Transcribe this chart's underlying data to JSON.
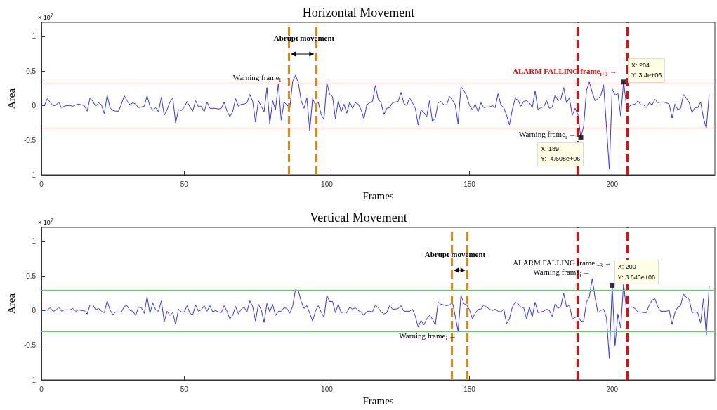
{
  "chart_data": [
    {
      "type": "line",
      "title": "Horizontal Movement",
      "xlabel": "Frames",
      "ylabel": "Area",
      "xlim": [
        0,
        236
      ],
      "xticks": [
        0,
        50,
        100,
        150,
        200
      ],
      "ylim": [
        -1,
        1.2
      ],
      "yticks": [
        -1,
        -0.5,
        0,
        0.5,
        1
      ],
      "grid": false,
      "x": [
        0,
        1,
        2,
        3,
        4,
        5,
        6,
        7,
        8,
        9,
        10,
        11,
        12,
        13,
        14,
        15,
        16,
        17,
        18,
        19,
        20,
        21,
        22,
        23,
        24,
        25,
        26,
        27,
        28,
        29,
        30,
        31,
        32,
        33,
        34,
        35,
        36,
        37,
        38,
        39,
        40,
        41,
        42,
        43,
        44,
        45,
        46,
        47,
        48,
        49,
        50,
        51,
        52,
        53,
        54,
        55,
        56,
        57,
        58,
        59,
        60,
        61,
        62,
        63,
        64,
        65,
        66,
        67,
        68,
        69,
        70,
        71,
        72,
        73,
        74,
        75,
        76,
        77,
        78,
        79,
        80,
        81,
        82,
        83,
        84,
        85,
        86,
        87,
        88,
        89,
        90,
        91,
        92,
        93,
        94,
        95,
        96,
        97,
        98,
        99,
        100,
        101,
        102,
        103,
        104,
        105,
        106,
        107,
        108,
        109,
        110,
        111,
        112,
        113,
        114,
        115,
        116,
        117,
        118,
        119,
        120,
        121,
        122,
        123,
        124,
        125,
        126,
        127,
        128,
        129,
        130,
        131,
        132,
        133,
        134,
        135,
        136,
        137,
        138,
        139,
        140,
        141,
        142,
        143,
        144,
        145,
        146,
        147,
        148,
        149,
        150,
        151,
        152,
        153,
        154,
        155,
        156,
        157,
        158,
        159,
        160,
        161,
        162,
        163,
        164,
        165,
        166,
        167,
        168,
        169,
        170,
        171,
        172,
        173,
        174,
        175,
        176,
        177,
        178,
        179,
        180,
        181,
        182,
        183,
        184,
        185,
        186,
        187,
        188,
        189,
        190,
        191,
        192,
        193,
        194,
        195,
        196,
        197,
        198,
        199,
        200,
        201,
        202,
        203,
        204,
        205,
        206,
        207,
        208,
        209,
        210,
        211,
        212,
        213,
        214,
        215,
        216,
        217,
        218,
        219,
        220,
        221,
        222,
        223,
        224,
        225,
        226,
        227,
        228,
        229,
        230,
        231,
        232,
        233,
        234
      ],
      "series": [
        {
          "color": "#3333ff",
          "marker": "none",
          "values": [
            0,
            0,
            0.1,
            0.05,
            0,
            0,
            0.05,
            -0.03,
            -0.01,
            0,
            0,
            -0.01,
            0.01,
            0.02,
            0.01,
            0,
            -0.08,
            0.11,
            0.06,
            -0.01,
            0.04,
            0.01,
            -0.12,
            0.15,
            -0.03,
            -0.07,
            -0.08,
            -0.08,
            0.02,
            0.14,
            0.07,
            0.01,
            0.04,
            0.02,
            -0.03,
            -0.02,
            -0.01,
            0.14,
            -0.01,
            -0.07,
            -0.03,
            -0.09,
            0.12,
            -0.14,
            -0.06,
            0.05,
            0.11,
            -0.25,
            -0.06,
            -0.07,
            -0.03,
            0.06,
            -0.02,
            -0.08,
            0.07,
            -0.02,
            -0.01,
            -0.09,
            0.05,
            -0.04,
            -0.04,
            -0.04,
            -0.05,
            -0.04,
            0.05,
            -0.08,
            -0.16,
            -0.09,
            0.1,
            -0.01,
            0.02,
            0.02,
            0.04,
            0.16,
            0.06,
            -0.24,
            0.07,
            -0.01,
            -0.09,
            0.26,
            -0.26,
            0.07,
            -0.06,
            0.32,
            -0.21,
            0.05,
            0.01,
            -0.04,
            0.34,
            0.44,
            0.33,
            0.07,
            -0.04,
            0.11,
            -0.36,
            0.1,
            0.01,
            0.05,
            -0.13,
            -0.2,
            0.33,
            0.16,
            0.13,
            -0.19,
            0.07,
            -0.09,
            0.02,
            -0.11,
            0.05,
            -0.04,
            0.04,
            0.02,
            -0.06,
            -0.19,
            0.01,
            0.04,
            0.06,
            0.29,
            0.09,
            0.04,
            -0.13,
            -0.04,
            -0.03,
            0.04,
            0.05,
            0.06,
            0.19,
            0.03,
            0,
            0.11,
            0.04,
            -0.04,
            -0.28,
            -0.06,
            -0.1,
            -0.16,
            0.07,
            -0.23,
            -0.18,
            0.04,
            0.06,
            0.01,
            0.01,
            0.13,
            0.08,
            0.01,
            -0.26,
            0.27,
            0.22,
            0.14,
            0,
            -0.06,
            0.02,
            -0.09,
            0.04,
            -0.03,
            -0.02,
            -0.02,
            0,
            -0.03,
            0.17,
            0.01,
            -0.03,
            -0.14,
            -0.28,
            -0.06,
            0.1,
            0.08,
            -0.01,
            0.06,
            0.07,
            0.04,
            -0.03,
            0.21,
            -0.06,
            -0.03,
            -0.02,
            0.07,
            -0.04,
            -0.02,
            0.15,
            0.07,
            0.09,
            0.26,
            0.04,
            0.11,
            -0.14,
            -0.04,
            -0.13,
            -0.4608,
            -0.3,
            0.22,
            0.34,
            0.19,
            0.07,
            0.1,
            0.14,
            0.3,
            -0.3,
            -0.92,
            0.24,
            0.15,
            0.18,
            -0.15,
            0.34,
            0.01,
            -0.01,
            0.01,
            0.02,
            0.07,
            0.01,
            0.01,
            -0.03,
            0.04,
            0.01,
            0.09,
            0.04,
            0.05,
            0.05,
            0.04,
            0.02,
            -0.18,
            0.02,
            -0.06,
            -0.04,
            0.16,
            0.11,
            0.04,
            -0.1,
            -0.03,
            -0.03,
            0.05,
            -0.18,
            -0.33,
            0.16
          ]
        },
        {
          "type": "scatter",
          "color": "#000000",
          "marker": "square",
          "x": [
            189,
            204
          ],
          "values": [
            -0.4608,
            0.34
          ]
        }
      ],
      "ref_lines": [
        {
          "axis": "x",
          "value": 86.6,
          "color": "#e8850c",
          "line_style": "dashed"
        },
        {
          "axis": "x",
          "value": 96.3,
          "color": "#e8850c",
          "line_style": "dashed"
        },
        {
          "axis": "x",
          "value": 187.8,
          "color": "#ff0000",
          "line_style": "dashed"
        },
        {
          "axis": "x",
          "value": 205.4,
          "color": "#ff0000",
          "line_style": "dashed"
        },
        {
          "axis": "y",
          "value": 0.32,
          "color": "#ff7070"
        },
        {
          "axis": "y",
          "value": -0.32,
          "color": "#ff7070"
        }
      ],
      "annotations": [
        "× 10$^{7}$",
        "Abrupt movement",
        {
          "text": "Warning frame$_{i}$ →",
          "x": 88,
          "y": 0.34
        },
        {
          "text": "ALARM FALLING frame$_{i+3}$ →",
          "x": 204,
          "y": 0.34
        },
        {
          "text": "X: 204\nY: 3.4e+06",
          "x": 204,
          "y": 0.34
        },
        {
          "text": "Warning frame$_{i}$ →",
          "x": 189,
          "y": -0.4608
        },
        {
          "text": "X: 189\nY: -4.608e+06",
          "x": 189,
          "y": -0.4608
        }
      ]
    },
    {
      "type": "line",
      "title": "Vertical Movement",
      "xlabel": "Frames",
      "ylabel": "Area",
      "xlim": [
        0,
        236
      ],
      "xticks": [
        0,
        50,
        100,
        150,
        200
      ],
      "ylim": [
        -1,
        1.2
      ],
      "yticks": [
        -1,
        -0.5,
        0,
        0.5,
        1
      ],
      "grid": false,
      "x": [
        0,
        1,
        2,
        3,
        4,
        5,
        6,
        7,
        8,
        9,
        10,
        11,
        12,
        13,
        14,
        15,
        16,
        17,
        18,
        19,
        20,
        21,
        22,
        23,
        24,
        25,
        26,
        27,
        28,
        29,
        30,
        31,
        32,
        33,
        34,
        35,
        36,
        37,
        38,
        39,
        40,
        41,
        42,
        43,
        44,
        45,
        46,
        47,
        48,
        49,
        50,
        51,
        52,
        53,
        54,
        55,
        56,
        57,
        58,
        59,
        60,
        61,
        62,
        63,
        64,
        65,
        66,
        67,
        68,
        69,
        70,
        71,
        72,
        73,
        74,
        75,
        76,
        77,
        78,
        79,
        80,
        81,
        82,
        83,
        84,
        85,
        86,
        87,
        88,
        89,
        90,
        91,
        92,
        93,
        94,
        95,
        96,
        97,
        98,
        99,
        100,
        101,
        102,
        103,
        104,
        105,
        106,
        107,
        108,
        109,
        110,
        111,
        112,
        113,
        114,
        115,
        116,
        117,
        118,
        119,
        120,
        121,
        122,
        123,
        124,
        125,
        126,
        127,
        128,
        129,
        130,
        131,
        132,
        133,
        134,
        135,
        136,
        137,
        138,
        139,
        140,
        141,
        142,
        143,
        144,
        145,
        146,
        147,
        148,
        149,
        150,
        151,
        152,
        153,
        154,
        155,
        156,
        157,
        158,
        159,
        160,
        161,
        162,
        163,
        164,
        165,
        166,
        167,
        168,
        169,
        170,
        171,
        172,
        173,
        174,
        175,
        176,
        177,
        178,
        179,
        180,
        181,
        182,
        183,
        184,
        185,
        186,
        187,
        188,
        189,
        190,
        191,
        192,
        193,
        194,
        195,
        196,
        197,
        198,
        199,
        200,
        201,
        202,
        203,
        204,
        205,
        206,
        207,
        208,
        209,
        210,
        211,
        212,
        213,
        214,
        215,
        216,
        217,
        218,
        219,
        220,
        221,
        222,
        223,
        224,
        225,
        226,
        227,
        228,
        229,
        230,
        231,
        232,
        233,
        234
      ],
      "series": [
        {
          "color": "#3333ff",
          "marker": "none",
          "values": [
            0,
            0,
            0.01,
            0.04,
            -0.01,
            0,
            0.05,
            -0.01,
            0.01,
            0.01,
            0.01,
            0.03,
            -0.01,
            0.01,
            0,
            0,
            -0.05,
            0.08,
            0.08,
            0.01,
            0.03,
            -0.01,
            -0.03,
            0.14,
            0.01,
            -0.06,
            -0.02,
            -0.02,
            -0.02,
            0.06,
            0.07,
            0,
            -0.01,
            -0.07,
            0.05,
            0.04,
            -0.04,
            0.2,
            -0.04,
            0.11,
            0.01,
            -0.01,
            0.14,
            -0.16,
            -0.01,
            -0.07,
            -0.03,
            -0.2,
            0.02,
            -0.02,
            -0.02,
            0.07,
            -0.04,
            -0.06,
            0.08,
            -0.01,
            0.01,
            0.07,
            -0.01,
            0.07,
            -0.02,
            0,
            -0.02,
            -0.03,
            0.07,
            -0.01,
            -0.12,
            -0.07,
            0.06,
            -0.05,
            0.02,
            0.05,
            -0.02,
            0.14,
            0.06,
            -0.15,
            0.09,
            0.01,
            -0.17,
            0.1,
            -0.02,
            0.09,
            -0.07,
            -0.01,
            -0.01,
            0.04,
            0.03,
            -0.04,
            0.06,
            0.3,
            0.29,
            0.13,
            0.03,
            0.07,
            -0.04,
            -0.15,
            -0.01,
            0.07,
            -0.02,
            -0.1,
            0.22,
            0.13,
            0.13,
            -0.03,
            0.09,
            -0.03,
            -0.02,
            -0.03,
            0.05,
            0.02,
            0.04,
            0,
            -0.02,
            -0.07,
            -0.01,
            -0.01,
            -0.02,
            0.08,
            0.04,
            -0.02,
            -0.05,
            -0.03,
            0.07,
            0.02,
            0.02,
            0.03,
            0.07,
            -0.01,
            -0.01,
            -0.01,
            0.02,
            -0.08,
            -0.24,
            -0.14,
            -0.21,
            -0.12,
            -0.07,
            -0.12,
            -0.21,
            0.12,
            0.09,
            0.08,
            0.07,
            0.08,
            0.12,
            -0.08,
            -0.3,
            0.22,
            0.1,
            0.08,
            0.01,
            -0.12,
            -0.04,
            0.02,
            0.02,
            0.08,
            0.05,
            0.02,
            0,
            0.02,
            -0.01,
            -0.02,
            0.02,
            -0.19,
            -0.12,
            0.05,
            0.12,
            0.1,
            0.05,
            0.04,
            -0.12,
            0.05,
            -0.09,
            0.12,
            -0.03,
            -0.02,
            -0.01,
            0.02,
            0,
            -0.09,
            0.1,
            0.03,
            0.06,
            0.25,
            0.05,
            0.08,
            -0.12,
            -0.1,
            -0.08,
            -0.15,
            -0.16,
            0.12,
            0.2,
            0.46,
            0.19,
            -0.03,
            0,
            0.02,
            -0.1,
            -0.69,
            0.3643,
            -0.51,
            -0.05,
            -0.25,
            0.39,
            0.01,
            0.05,
            0.05,
            0.03,
            -0.02,
            -0.02,
            -0.03,
            -0.03,
            0.08,
            0.15,
            0.17,
            0.05,
            -0.01,
            -0.01,
            -0.01,
            0,
            -0.2,
            -0.03,
            0.05,
            0.07,
            0.24,
            0.19,
            0.16,
            -0.03,
            -0.02,
            -0.03,
            -0.18,
            0.17,
            -0.35,
            0.35
          ]
        },
        {
          "type": "scatter",
          "color": "#000000",
          "marker": "square",
          "x": [
            200
          ],
          "values": [
            0.3643
          ]
        }
      ],
      "ref_lines": [
        {
          "axis": "x",
          "value": 143.7,
          "color": "#e8850c",
          "line_style": "dashed"
        },
        {
          "axis": "x",
          "value": 149.3,
          "color": "#e8850c",
          "line_style": "dashed"
        },
        {
          "axis": "x",
          "value": 187.8,
          "color": "#ff0000",
          "line_style": "dashed"
        },
        {
          "axis": "x",
          "value": 205.4,
          "color": "#ff0000",
          "line_style": "dashed"
        },
        {
          "axis": "y",
          "value": 0.3,
          "color": "#33ee33"
        },
        {
          "axis": "y",
          "value": -0.3,
          "color": "#33ee33"
        }
      ],
      "annotations": [
        "× 10$^{7}$",
        "Abrupt movement",
        {
          "text": "Warning frame$_{i}$ →",
          "x": 146,
          "y": -0.3
        },
        {
          "text": "ALARM FALLING frame$_{i+3}$ →",
          "x": 200,
          "y": 0.3643
        },
        {
          "text": "Warning frame$_{i}$ →",
          "x": 193,
          "y": 0.46
        },
        {
          "text": "X: 200\nY: 3.643e+06",
          "x": 200,
          "y": 0.3643
        }
      ]
    }
  ]
}
